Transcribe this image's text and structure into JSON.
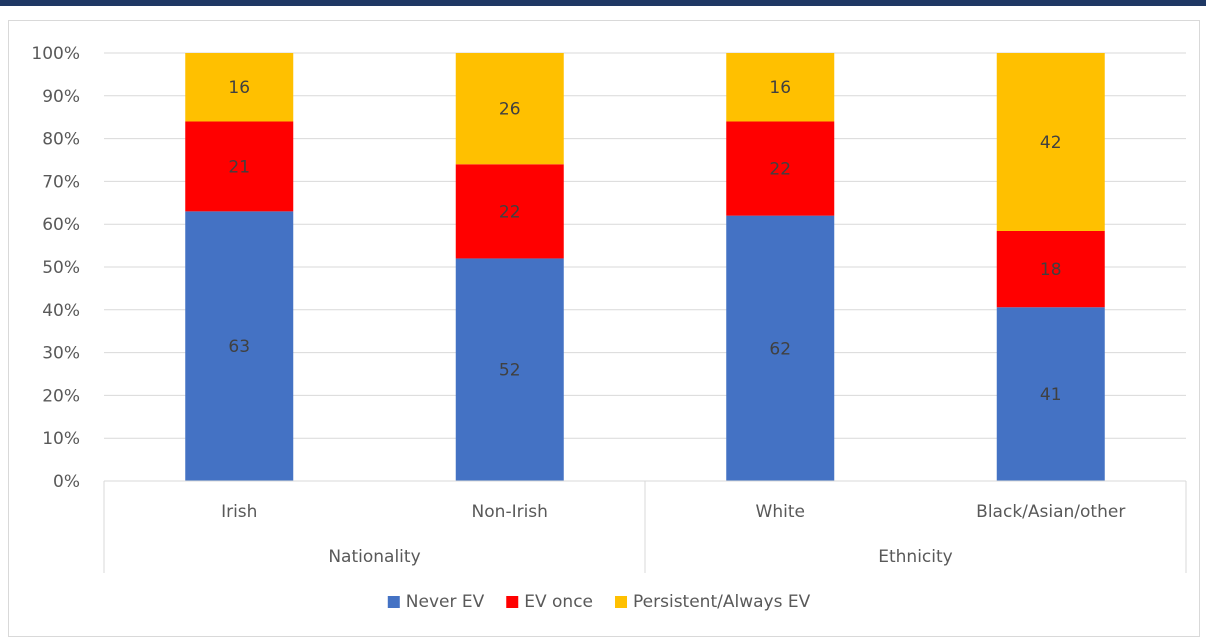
{
  "chart_data": {
    "type": "bar",
    "stacked": true,
    "percent_stacked": true,
    "categories": [
      "Irish",
      "Non-Irish",
      "White",
      "Black/Asian/other"
    ],
    "groups": [
      {
        "label": "Nationality",
        "categories": [
          "Irish",
          "Non-Irish"
        ]
      },
      {
        "label": "Ethnicity",
        "categories": [
          "White",
          "Black/Asian/other"
        ]
      }
    ],
    "series": [
      {
        "name": "Never EV",
        "color": "#4472c4",
        "values": [
          63,
          52,
          62,
          41
        ]
      },
      {
        "name": "EV once",
        "color": "#ff0000",
        "values": [
          21,
          22,
          22,
          18
        ]
      },
      {
        "name": "Persistent/Always EV",
        "color": "#ffc000",
        "values": [
          16,
          26,
          16,
          42
        ]
      }
    ],
    "ylim": [
      0,
      100
    ],
    "yticks": [
      "0%",
      "10%",
      "20%",
      "30%",
      "40%",
      "50%",
      "60%",
      "70%",
      "80%",
      "90%",
      "100%"
    ],
    "grid": true,
    "legend_position": "bottom"
  }
}
